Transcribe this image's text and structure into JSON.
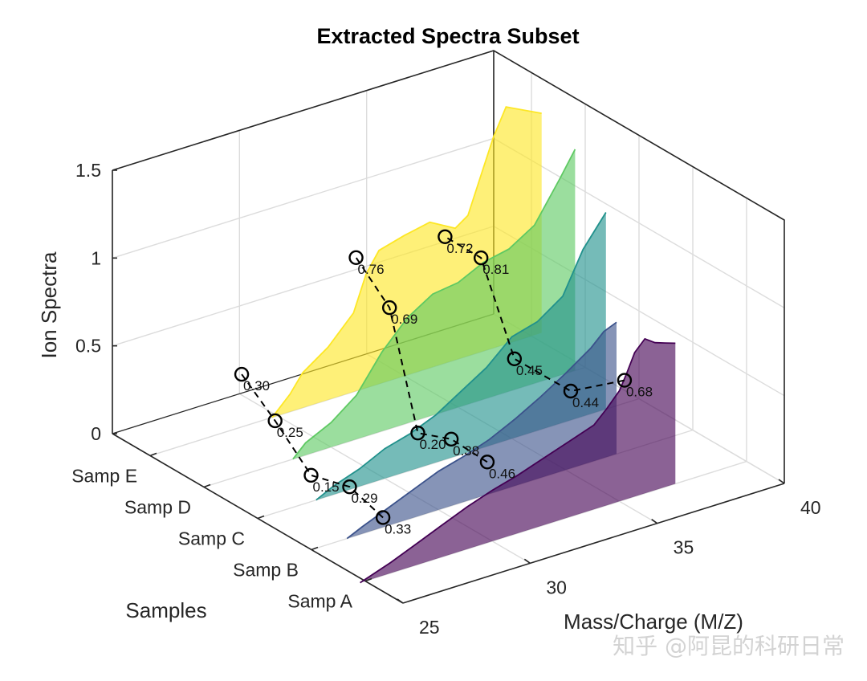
{
  "chart_data": {
    "type": "area",
    "title": "Extracted Spectra Subset",
    "xlabel": "Mass/Charge (M/Z)",
    "ylabel": "Samples",
    "zlabel": "Ion Spectra",
    "xlim": [
      25,
      40
    ],
    "zlim": [
      0,
      1.5
    ],
    "x_ticks": [
      "25",
      "30",
      "35",
      "40"
    ],
    "z_ticks": [
      "0",
      "0.5",
      "1",
      "1.5"
    ],
    "categories": [
      "Samp A",
      "Samp B",
      "Samp C",
      "Samp D",
      "Samp E"
    ],
    "grid": true,
    "series": [
      {
        "name": "Samp A",
        "color": "#440154",
        "x": [
          24.8,
          26,
          27,
          28,
          29,
          30,
          31,
          32,
          33,
          34,
          34.5,
          35,
          35.3,
          35.6,
          36,
          36.4,
          36.8,
          37.2
        ],
        "values": [
          0.0,
          0.06,
          0.12,
          0.18,
          0.24,
          0.29,
          0.33,
          0.38,
          0.43,
          0.48,
          0.55,
          0.63,
          0.72,
          0.82,
          0.88,
          0.84,
          0.82,
          0.8
        ]
      },
      {
        "name": "Samp B",
        "color": "#3b528b",
        "x": [
          26.4,
          27,
          28,
          29,
          30,
          31,
          32,
          33,
          34,
          35,
          36,
          36.5,
          37
        ],
        "values": [
          0.0,
          0.04,
          0.1,
          0.16,
          0.22,
          0.26,
          0.31,
          0.38,
          0.46,
          0.55,
          0.65,
          0.72,
          0.75
        ]
      },
      {
        "name": "Samp C",
        "color": "#21918c",
        "x": [
          27.3,
          28,
          29,
          30,
          31,
          32,
          33,
          34,
          35,
          36,
          37,
          37.8,
          38.7
        ],
        "values": [
          0.0,
          0.05,
          0.1,
          0.17,
          0.21,
          0.27,
          0.36,
          0.45,
          0.58,
          0.62,
          0.72,
          0.95,
          1.12
        ]
      },
      {
        "name": "Samp D",
        "color": "#5ec962",
        "x": [
          28.5,
          29,
          30,
          31,
          32,
          33,
          34,
          35,
          36,
          37,
          38,
          39,
          39.6
        ],
        "values": [
          0.0,
          0.07,
          0.14,
          0.25,
          0.45,
          0.6,
          0.69,
          0.71,
          0.78,
          0.81,
          0.9,
          1.12,
          1.26
        ]
      },
      {
        "name": "Samp E",
        "color": "#fde725",
        "x": [
          29.8,
          30.5,
          31,
          32,
          33,
          33.5,
          34,
          35,
          36,
          37,
          37.5,
          38,
          38.5,
          39,
          40.4
        ],
        "values": [
          0.0,
          0.1,
          0.2,
          0.3,
          0.45,
          0.65,
          0.76,
          0.8,
          0.83,
          0.75,
          0.8,
          1.0,
          1.2,
          1.35,
          1.25
        ]
      }
    ],
    "markers": {
      "row1": [
        {
          "sample": "Samp A",
          "x": 25.7,
          "z": 0.33,
          "label": "0.33"
        },
        {
          "sample": "Samp B",
          "x": 26.5,
          "z": 0.29,
          "label": "0.29"
        },
        {
          "sample": "Samp C",
          "x": 27.1,
          "z": 0.15,
          "label": "0.15"
        },
        {
          "sample": "Samp D",
          "x": 27.8,
          "z": 0.25,
          "label": "0.25"
        },
        {
          "sample": "Samp E",
          "x": 28.6,
          "z": 0.3,
          "label": "0.30"
        }
      ],
      "row2": [
        {
          "sample": "Samp A",
          "x": 29.8,
          "z": 0.46,
          "label": "0.46"
        },
        {
          "sample": "Samp B",
          "x": 30.5,
          "z": 0.38,
          "label": "0.38"
        },
        {
          "sample": "Samp C",
          "x": 31.3,
          "z": 0.2,
          "label": "0.20"
        },
        {
          "sample": "Samp D",
          "x": 32.3,
          "z": 0.69,
          "label": "0.69"
        },
        {
          "sample": "Samp E",
          "x": 33.1,
          "z": 0.76,
          "label": "0.76"
        }
      ],
      "row3": [
        {
          "sample": "Samp A",
          "x": 35.2,
          "z": 0.68,
          "label": "0.68"
        },
        {
          "sample": "Samp B",
          "x": 35.2,
          "z": 0.44,
          "label": "0.44"
        },
        {
          "sample": "Samp C",
          "x": 35.1,
          "z": 0.45,
          "label": "0.45"
        },
        {
          "sample": "Samp D",
          "x": 35.9,
          "z": 0.81,
          "label": "0.81"
        },
        {
          "sample": "Samp E",
          "x": 36.6,
          "z": 0.72,
          "label": "0.72"
        }
      ]
    }
  },
  "watermark": "知乎 @阿昆的科研日常"
}
